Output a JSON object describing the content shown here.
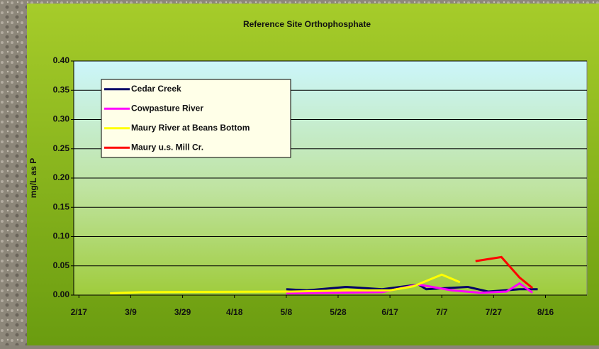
{
  "chart_data": {
    "type": "line",
    "title": "Reference Site Orthophosphate",
    "y_label": "mg/L as P",
    "series": [
      {
        "name": "Cedar Creek",
        "color": "#000066",
        "x": [
          "5/8",
          "5/16",
          "5/31",
          "6/14",
          "6/28",
          "7/1",
          "7/17",
          "7/25",
          "8/6",
          "8/13"
        ],
        "values": [
          0.01,
          0.008,
          0.014,
          0.01,
          0.018,
          0.01,
          0.014,
          0.006,
          0.01,
          0.01
        ]
      },
      {
        "name": "Cowpasture River",
        "color": "#ff00ff",
        "x": [
          "5/8",
          "6/14",
          "6/28",
          "7/11",
          "7/22",
          "8/1",
          "8/6",
          "8/11"
        ],
        "values": [
          0.003,
          0.005,
          0.018,
          0.008,
          0.004,
          0.006,
          0.02,
          0.004
        ]
      },
      {
        "name": "Maury River at Beans Bottom",
        "color": "#ffff00",
        "x": [
          "3/1",
          "3/13",
          "5/10",
          "6/1",
          "6/17",
          "6/26",
          "7/7",
          "7/14"
        ],
        "values": [
          0.003,
          0.005,
          0.006,
          0.008,
          0.008,
          0.015,
          0.035,
          0.022
        ]
      },
      {
        "name": "Maury u.s. Mill Cr.",
        "color": "#ff0000",
        "x": [
          "7/20",
          "7/30",
          "8/6",
          "8/11"
        ],
        "values": [
          0.058,
          0.065,
          0.03,
          0.012
        ]
      }
    ],
    "xlim": [
      "2/15",
      "9/1"
    ],
    "xticks": [
      "2/17",
      "3/9",
      "3/29",
      "4/18",
      "5/8",
      "5/28",
      "6/17",
      "7/7",
      "7/27",
      "8/16"
    ],
    "ylim": [
      0,
      0.4
    ],
    "yticks": [
      {
        "value": 0,
        "label": "0.00"
      },
      {
        "value": 0.05,
        "label": "0.05"
      },
      {
        "value": 0.1,
        "label": "0.10"
      },
      {
        "value": 0.15,
        "label": "0.15"
      },
      {
        "value": 0.2,
        "label": "0.20"
      },
      {
        "value": 0.25,
        "label": "0.25"
      },
      {
        "value": 0.3,
        "label": "0.30"
      },
      {
        "value": 0.35,
        "label": "0.35"
      },
      {
        "value": 0.4,
        "label": "0.40"
      }
    ],
    "grid": true,
    "legend": "upper left"
  }
}
